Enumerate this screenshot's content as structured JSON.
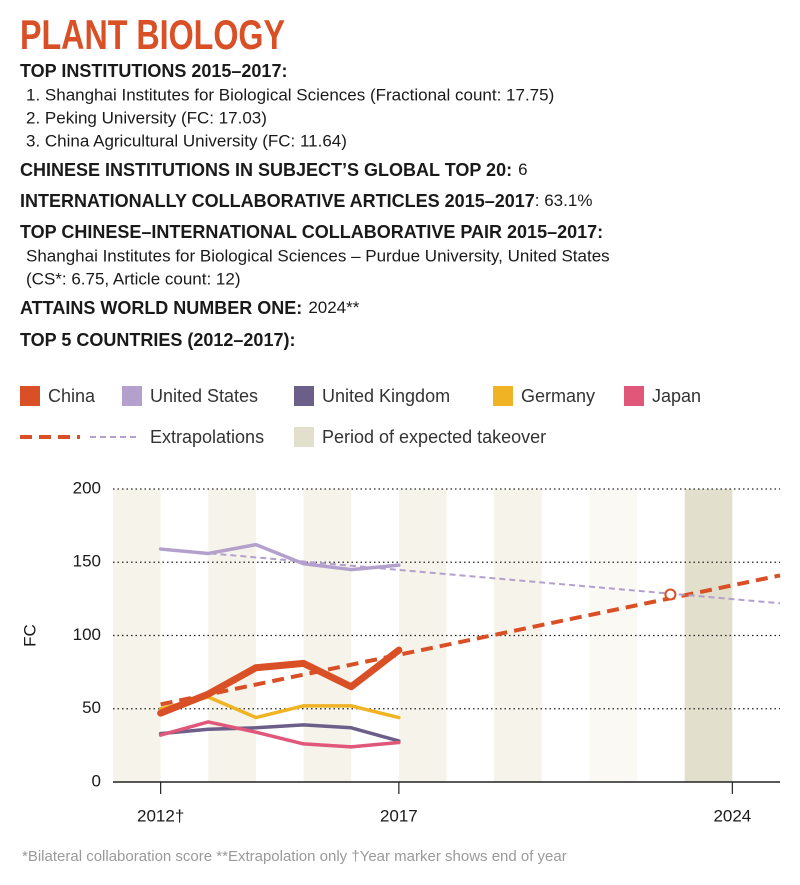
{
  "header": {
    "title": "PLANT BIOLOGY",
    "institutions_label": "TOP INSTITUTIONS 2015–2017:",
    "institutions": [
      "1. Shanghai Institutes for Biological Sciences (Fractional count: 17.75)",
      "2. Peking University (FC: 17.03)",
      "3. China Agricultural University (FC: 11.64)"
    ],
    "global_top20_label": "CHINESE INSTITUTIONS IN SUBJECT’S GLOBAL TOP 20:",
    "global_top20_value": "6",
    "collab_label": "INTERNATIONALLY COLLABORATIVE ARTICLES 2015–2017",
    "collab_value": ": 63.1%",
    "pair_label": "TOP CHINESE–INTERNATIONAL COLLABORATIVE PAIR 2015–2017:",
    "pair_lines": [
      "Shanghai Institutes for Biological Sciences – Purdue University, United States",
      "(CS*: 6.75, Article count: 12)"
    ],
    "number_one_label": "ATTAINS WORLD NUMBER ONE:",
    "number_one_value": "2024**",
    "countries_label": "TOP 5 COUNTRIES (2012–2017):"
  },
  "chart_data": {
    "type": "line",
    "ylabel": "FC",
    "x": [
      2012,
      2013,
      2014,
      2015,
      2016,
      2017
    ],
    "xlim": [
      2011,
      2025
    ],
    "xticks": [
      {
        "value": 2012,
        "label": "2012†"
      },
      2017,
      2024
    ],
    "ylim": [
      0,
      200
    ],
    "yticks": [
      0,
      50,
      100,
      150,
      200
    ],
    "grid": true,
    "series": [
      {
        "name": "China",
        "color": "#d94f26",
        "values": [
          47,
          60,
          78,
          81,
          65,
          90
        ]
      },
      {
        "name": "United States",
        "color": "#b3a0cc",
        "values": [
          159,
          156,
          162,
          149,
          145,
          148
        ]
      },
      {
        "name": "United Kingdom",
        "color": "#6b5f8a",
        "values": [
          33,
          36,
          37,
          39,
          37,
          28
        ]
      },
      {
        "name": "Germany",
        "color": "#f0b323",
        "values": [
          50,
          58,
          44,
          52,
          52,
          44
        ]
      },
      {
        "name": "Japan",
        "color": "#e0577a",
        "values": [
          32,
          41,
          34,
          26,
          24,
          27
        ]
      }
    ],
    "extrapolations": {
      "name": "Extrapolations",
      "x": [
        2012,
        2025
      ],
      "series": [
        {
          "color": "#d94f26",
          "values": [
            53,
            141
          ]
        },
        {
          "color": "#b3a0cc",
          "values": [
            159,
            122
          ]
        }
      ]
    },
    "takeover": {
      "name": "Period of expected takeover",
      "range": [
        2023,
        2024
      ],
      "color": "#e2e0cc"
    },
    "crossing": {
      "x": 2022.7,
      "value": 128
    }
  },
  "footnote": "*Bilateral collaboration score **Extrapolation only †Year marker shows end of year"
}
